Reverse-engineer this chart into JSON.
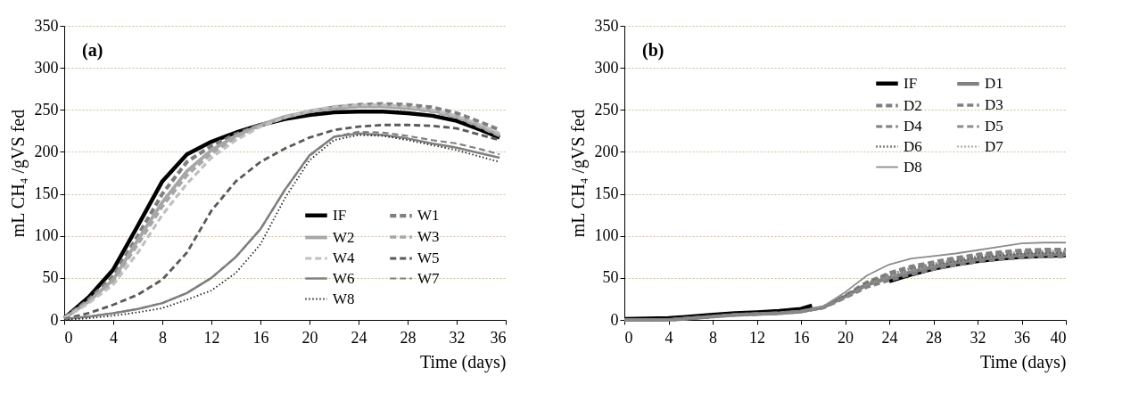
{
  "chart_data": [
    {
      "type": "line",
      "xlabel": "Time (days)",
      "ylabel": "mL CH₄ /gVS fed",
      "annotations": [
        "(a)"
      ],
      "xlim": [
        0,
        36
      ],
      "xticks": [
        0,
        4,
        8,
        12,
        16,
        20,
        24,
        28,
        32,
        36
      ],
      "ylim": [
        0,
        350
      ],
      "yticks": [
        0,
        50,
        100,
        150,
        200,
        250,
        300,
        350
      ],
      "grid": "y",
      "legend": "bottom right",
      "x": [
        0,
        2,
        4,
        6,
        8,
        10,
        12,
        14,
        16,
        18,
        20,
        22,
        24,
        26,
        28,
        30,
        32,
        34,
        35.5
      ],
      "series": [
        {
          "name": "IF",
          "color": "#000000",
          "line_style": "solid",
          "values": [
            2,
            27,
            60,
            112,
            165,
            197,
            212,
            223,
            232,
            239,
            244,
            247,
            248,
            248,
            246,
            243,
            237,
            226,
            217
          ]
        },
        {
          "name": "W1",
          "color": "#7f7f7f",
          "line_style": "dashed",
          "values": [
            2,
            24,
            52,
            100,
            150,
            188,
            207,
            221,
            232,
            241,
            248,
            253,
            256,
            257,
            256,
            253,
            246,
            235,
            226
          ]
        },
        {
          "name": "W2",
          "color": "#a6a6a6",
          "line_style": "solid",
          "values": [
            2,
            22,
            48,
            95,
            140,
            177,
            202,
            219,
            232,
            242,
            248,
            252,
            254,
            254,
            252,
            249,
            242,
            230,
            220
          ]
        },
        {
          "name": "W3",
          "color": "#a6a6a6",
          "line_style": "dashed",
          "values": [
            2,
            21,
            46,
            90,
            135,
            172,
            198,
            217,
            231,
            241,
            248,
            252,
            254,
            254,
            252,
            248,
            241,
            229,
            219
          ]
        },
        {
          "name": "W4",
          "color": "#bfbfbf",
          "line_style": "dashed",
          "values": [
            2,
            20,
            42,
            80,
            125,
            162,
            193,
            214,
            230,
            241,
            249,
            254,
            256,
            256,
            254,
            250,
            243,
            232,
            222
          ]
        },
        {
          "name": "W5",
          "color": "#595959",
          "line_style": "dashed",
          "values": [
            1,
            8,
            18,
            30,
            48,
            80,
            130,
            165,
            188,
            204,
            217,
            226,
            230,
            232,
            232,
            231,
            228,
            220,
            214
          ]
        },
        {
          "name": "W6",
          "color": "#808080",
          "line_style": "solid",
          "values": [
            1,
            4,
            8,
            13,
            20,
            32,
            50,
            75,
            108,
            155,
            196,
            218,
            222,
            220,
            216,
            210,
            205,
            198,
            193
          ]
        },
        {
          "name": "W7",
          "color": "#7f7f7f",
          "line_style": "dashed",
          "values": [
            1,
            4,
            8,
            13,
            20,
            32,
            50,
            75,
            108,
            155,
            195,
            218,
            224,
            223,
            219,
            214,
            210,
            203,
            197
          ]
        },
        {
          "name": "W8",
          "color": "#262626",
          "line_style": "dotted",
          "values": [
            0,
            2,
            5,
            9,
            14,
            24,
            35,
            56,
            90,
            145,
            190,
            214,
            220,
            219,
            214,
            208,
            202,
            194,
            188
          ]
        }
      ]
    },
    {
      "type": "line",
      "xlabel": "Time (days)",
      "ylabel": "mL CH₄ /gVS fed",
      "annotations": [
        "(b)"
      ],
      "xlim": [
        0,
        40
      ],
      "xticks": [
        0,
        4,
        8,
        12,
        16,
        20,
        24,
        28,
        32,
        36,
        40
      ],
      "ylim": [
        0,
        350
      ],
      "yticks": [
        0,
        50,
        100,
        150,
        200,
        250,
        300,
        350
      ],
      "grid": "y",
      "legend": "top right",
      "x": [
        0,
        2,
        4,
        6,
        8,
        10,
        12,
        14,
        16,
        18,
        20,
        22,
        24,
        26,
        28,
        30,
        32,
        34,
        36,
        38,
        40
      ],
      "series": [
        {
          "name": "IF",
          "color": "#000000",
          "line_style": "solid",
          "x": [
            0,
            2,
            4,
            6,
            8,
            10,
            12,
            14,
            16,
            17,
            20,
            24,
            26,
            28,
            30,
            32,
            34,
            36,
            38,
            40
          ],
          "values": [
            1,
            1.5,
            2,
            4,
            6,
            8,
            9,
            10.5,
            13,
            17,
            null,
            46,
            54,
            61,
            66,
            70,
            73,
            75,
            76,
            77
          ]
        },
        {
          "name": "D1",
          "color": "#808080",
          "line_style": "solid",
          "values": [
            0,
            0,
            0,
            2,
            4,
            6,
            7,
            8,
            10,
            15,
            28,
            42,
            50,
            57,
            63,
            68,
            72,
            75,
            77,
            78,
            78
          ]
        },
        {
          "name": "D2",
          "color": "#7f7f7f",
          "line_style": "dashed",
          "values": [
            0,
            0,
            0,
            2,
            4,
            6,
            7,
            8,
            10,
            15,
            29,
            45,
            55,
            62,
            67,
            72,
            76,
            79,
            81,
            82,
            83
          ]
        },
        {
          "name": "D3",
          "color": "#808080",
          "line_style": "dashed",
          "values": [
            0,
            0,
            0,
            2,
            4,
            6,
            7,
            8,
            10,
            15,
            28,
            44,
            56,
            64,
            69,
            74,
            78,
            81,
            83,
            84,
            84
          ]
        },
        {
          "name": "D4",
          "color": "#808080",
          "line_style": "dashed",
          "values": [
            0,
            0,
            0,
            2,
            4,
            6,
            7,
            8,
            10,
            14,
            26,
            39,
            47,
            54,
            60,
            65,
            69,
            72,
            74,
            75,
            75
          ]
        },
        {
          "name": "D5",
          "color": "#8c8c8c",
          "line_style": "dashed",
          "values": [
            0,
            0,
            0,
            2,
            4,
            6,
            7,
            8,
            10,
            15,
            27,
            42,
            51,
            58,
            64,
            69,
            73,
            76,
            78,
            79,
            80
          ]
        },
        {
          "name": "D6",
          "color": "#595959",
          "line_style": "dotted",
          "values": [
            0,
            0,
            0,
            2,
            4,
            6,
            7,
            8,
            10,
            15,
            28,
            44,
            54,
            61,
            66,
            70,
            74,
            77,
            79,
            80,
            80
          ]
        },
        {
          "name": "D7",
          "color": "#8c8c8c",
          "line_style": "dotted",
          "values": [
            0,
            0,
            0,
            2,
            4,
            6,
            7,
            8,
            10,
            15,
            27,
            43,
            54,
            62,
            67,
            72,
            76,
            79,
            81,
            82,
            82
          ]
        },
        {
          "name": "D8",
          "color": "#8c8c8c",
          "line_style": "solid",
          "values": [
            0,
            0,
            0,
            2,
            4,
            6,
            7,
            8,
            10,
            16,
            33,
            53,
            66,
            73,
            76,
            79,
            83,
            87,
            91,
            92,
            92
          ]
        }
      ]
    }
  ]
}
